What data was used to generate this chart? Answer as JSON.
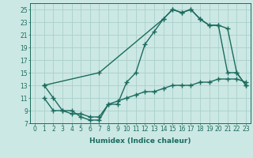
{
  "bg_color": "#cce8e4",
  "grid_color": "#aacfcb",
  "line_color": "#1a6b5e",
  "line_width": 1.0,
  "marker": "+",
  "marker_size": 4,
  "xlim": [
    -0.5,
    23.5
  ],
  "ylim": [
    7,
    26
  ],
  "xticks": [
    0,
    1,
    2,
    3,
    4,
    5,
    6,
    7,
    8,
    9,
    10,
    11,
    12,
    13,
    14,
    15,
    16,
    17,
    18,
    19,
    20,
    21,
    22,
    23
  ],
  "yticks": [
    7,
    9,
    11,
    13,
    15,
    17,
    19,
    21,
    23,
    25
  ],
  "xlabel": "Humidex (Indice chaleur)",
  "xlabel_fontsize": 6.5,
  "tick_fontsize": 5.5,
  "line1_x": [
    1,
    2,
    3,
    4,
    5,
    6,
    7,
    8,
    9,
    10,
    11,
    12,
    13,
    14,
    15,
    16,
    17,
    18,
    19,
    20,
    21,
    22,
    23
  ],
  "line1_y": [
    13,
    11,
    9,
    9,
    8,
    7.5,
    7.5,
    10,
    10,
    13.5,
    15,
    19.5,
    21.5,
    23.5,
    25,
    24.5,
    25,
    23.5,
    22.5,
    22.5,
    15,
    15,
    13
  ],
  "line2_x": [
    1,
    2,
    3,
    4,
    5,
    6,
    7,
    8,
    9,
    10,
    11,
    12,
    13,
    14,
    15,
    16,
    17,
    18,
    19,
    20,
    21,
    22,
    23
  ],
  "line2_y": [
    11,
    9,
    9,
    8.5,
    8.5,
    8,
    8,
    10,
    10.5,
    11,
    11.5,
    12,
    12,
    12.5,
    13,
    13,
    13,
    13.5,
    13.5,
    14,
    14,
    14,
    13.5
  ],
  "line3_x": [
    1,
    7,
    14,
    15,
    16,
    17,
    18,
    19,
    20,
    21,
    22,
    23
  ],
  "line3_y": [
    13,
    15,
    23.5,
    25,
    24.5,
    25,
    23.5,
    22.5,
    22.5,
    22,
    15,
    13
  ]
}
